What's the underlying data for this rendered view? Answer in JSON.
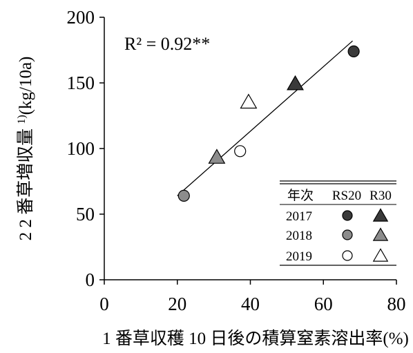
{
  "chart_data": {
    "type": "scatter",
    "xlabel": "1 番草収穫 10 日後の積算窒素溶出率(%)",
    "ylabel": "2 番草増収量",
    "ylabel_unit": "(kg/10a)",
    "ylabel_superscript": "1)",
    "xlim": [
      0,
      80
    ],
    "ylim": [
      0,
      200
    ],
    "xticks": [
      0,
      20,
      40,
      60,
      80
    ],
    "yticks": [
      0,
      50,
      100,
      150,
      200
    ],
    "xtick_labels": [
      "0",
      "20",
      "40",
      "60",
      "80"
    ],
    "ytick_labels": [
      "0",
      "50",
      "100",
      "150",
      "200"
    ],
    "grid": false,
    "annotation": "R² = 0.92**",
    "trendline": {
      "x": [
        20,
        68
      ],
      "y": [
        64,
        182
      ]
    },
    "legend": {
      "placement": "bottom-right",
      "header": [
        "年次",
        "RS20",
        "R30"
      ],
      "rows": [
        {
          "year": "2017",
          "color": "#3a3a3a",
          "filled": true
        },
        {
          "year": "2018",
          "color": "#8c8c8c",
          "filled": true
        },
        {
          "year": "2019",
          "color": "#ffffff",
          "filled": false
        }
      ]
    },
    "series": [
      {
        "year": "2017",
        "marker": "circle",
        "color": "#3a3a3a",
        "filled": true,
        "points": [
          {
            "x": 68.3,
            "y": 174
          }
        ]
      },
      {
        "year": "2017",
        "marker": "triangle",
        "color": "#3a3a3a",
        "filled": true,
        "points": [
          {
            "x": 52.3,
            "y": 149
          }
        ]
      },
      {
        "year": "2018",
        "marker": "circle",
        "color": "#8c8c8c",
        "filled": true,
        "points": [
          {
            "x": 21.8,
            "y": 64
          }
        ]
      },
      {
        "year": "2018",
        "marker": "triangle",
        "color": "#8c8c8c",
        "filled": true,
        "points": [
          {
            "x": 30.8,
            "y": 93
          }
        ]
      },
      {
        "year": "2019",
        "marker": "circle",
        "color": "#ffffff",
        "filled": false,
        "points": [
          {
            "x": 37.2,
            "y": 98
          }
        ]
      },
      {
        "year": "2019",
        "marker": "triangle",
        "color": "#ffffff",
        "filled": false,
        "points": [
          {
            "x": 39.5,
            "y": 135
          }
        ]
      }
    ]
  }
}
